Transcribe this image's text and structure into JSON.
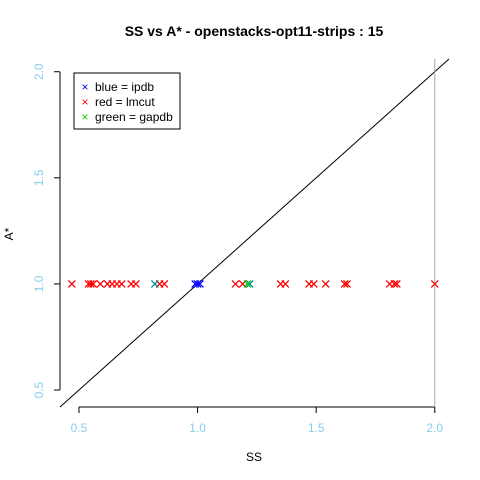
{
  "chart_data": {
    "type": "scatter",
    "title": "SS vs A* - openstacks-opt11-strips : 15",
    "xlabel": "SS",
    "ylabel": "A*",
    "xlim": [
      0.42,
      2.06
    ],
    "ylim": [
      0.42,
      2.06
    ],
    "xticks": [
      0.5,
      1.0,
      1.5,
      2.0
    ],
    "yticks": [
      0.5,
      1.0,
      1.5,
      2.0
    ],
    "x_tick_labels": [
      "0.5",
      "1.0",
      "1.5",
      "2.0"
    ],
    "y_tick_labels": [
      "0.5",
      "1.0",
      "1.5",
      "2.0"
    ],
    "tick_color": "#87CEEB",
    "diagonal": true,
    "vline_x": 2.0,
    "legend": {
      "position": "top-left",
      "entries": [
        {
          "label": "blue = ipdb",
          "color": "#0000FF"
        },
        {
          "label": "red = lmcut",
          "color": "#FF0000"
        },
        {
          "label": "green = gapdb",
          "color": "#00CC00"
        }
      ]
    },
    "series": [
      {
        "color": "#FF0000",
        "marker": "x",
        "x": [
          0.47,
          0.54,
          0.55,
          0.56,
          0.59,
          0.62,
          0.64,
          0.66,
          0.68,
          0.72,
          0.74,
          0.84,
          0.86,
          1.16,
          1.19,
          1.35,
          1.37,
          1.47,
          1.49,
          1.54,
          1.62,
          1.63,
          1.81,
          1.83,
          1.84,
          2.0
        ],
        "y": [
          1,
          1,
          1,
          1,
          1,
          1,
          1,
          1,
          1,
          1,
          1,
          1,
          1,
          1,
          1,
          1,
          1,
          1,
          1,
          1,
          1,
          1,
          1,
          1,
          1,
          1
        ]
      },
      {
        "color": "#008B8B",
        "marker": "x",
        "x": [
          0.82,
          1.22
        ],
        "y": [
          1,
          1
        ]
      },
      {
        "color": "#00CC00",
        "marker": "x",
        "x": [
          1.21
        ],
        "y": [
          1
        ]
      },
      {
        "color": "#0000FF",
        "marker": "x",
        "x": [
          0.99,
          1.0,
          1.01
        ],
        "y": [
          1,
          1,
          1
        ]
      }
    ]
  }
}
